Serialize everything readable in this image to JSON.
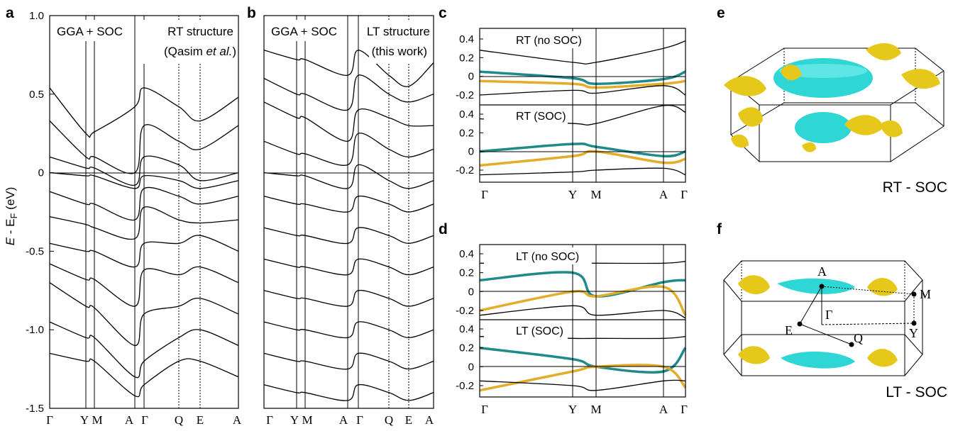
{
  "panels": {
    "a": {
      "label": "a",
      "ylabel_main": "E",
      "ylabel_rest": " - E",
      "ylabel_sub": "F",
      "ylabel_unit": " (eV)",
      "ylim": [
        -1.5,
        1.0
      ],
      "yticks": [
        "1.0",
        "0.5",
        "0",
        "-0.5",
        "-1.0",
        "-1.5"
      ],
      "kpoints": [
        "Γ",
        "Y",
        "M",
        "A",
        "Γ",
        "Q",
        "E",
        "A"
      ],
      "annot_left": "GGA + SOC",
      "annot_right_1": "RT structure",
      "annot_right_2a": "(Qasim ",
      "annot_right_2b": "et al.",
      "annot_right_2c": ")"
    },
    "b": {
      "label": "b",
      "kpoints": [
        "Γ",
        "Y",
        "M",
        "A",
        "Γ",
        "Q",
        "E",
        "A"
      ],
      "annot_left": "GGA + SOC",
      "annot_right_1": "LT structure",
      "annot_right_2": "(this work)"
    },
    "c": {
      "label": "c",
      "top_title": "RT (no SOC)",
      "bottom_title": "RT (SOC)",
      "top_yticks": [
        "0.4",
        "0.2",
        "0",
        "-0.2"
      ],
      "bottom_yticks": [
        "0.4",
        "0.2",
        "0",
        "-0.2"
      ],
      "kpoints": [
        "Γ",
        "Y",
        "M",
        "A",
        "Γ"
      ]
    },
    "d": {
      "label": "d",
      "top_title": "LT (no SOC)",
      "bottom_title": "LT (SOC)",
      "top_yticks": [
        "0.4",
        "0.2",
        "0",
        "-0.2"
      ],
      "bottom_yticks": [
        "0.4",
        "0.2",
        "0",
        "-0.2"
      ],
      "kpoints": [
        "Γ",
        "Y",
        "M",
        "A",
        "Γ"
      ]
    },
    "e": {
      "label": "e",
      "caption": "RT - SOC"
    },
    "f": {
      "label": "f",
      "caption": "LT - SOC",
      "points": [
        "A",
        "M",
        "Γ",
        "E",
        "Y",
        "Q"
      ]
    }
  },
  "colors": {
    "teal": "#1f8a8a",
    "gold": "#e3ad2a",
    "fs_gold": "#e6c81a",
    "fs_cyan": "#2fd6d6"
  },
  "chart_data": [
    {
      "type": "line",
      "title": "",
      "xlabel": "",
      "ylabel": "E - EF (eV)",
      "ylim": [
        -1.5,
        1.0
      ],
      "categories": [
        "Γ",
        "Y",
        "M",
        "A",
        "Γ",
        "Q",
        "E",
        "A"
      ],
      "series": [
        {
          "values": [
            0.54,
            0.25,
            0.26,
            0.42,
            0.54,
            0.42,
            0.33,
            0.48
          ]
        },
        {
          "values": [
            0.33,
            0.1,
            0.1,
            0.0,
            0.3,
            0.2,
            0.15,
            0.3
          ]
        },
        {
          "values": [
            0.1,
            0.03,
            0.03,
            -0.08,
            0.1,
            0.05,
            -0.05,
            0.0
          ]
        },
        {
          "values": [
            0.0,
            -0.02,
            -0.02,
            -0.1,
            -0.02,
            -0.05,
            -0.1,
            -0.05
          ]
        },
        {
          "values": [
            -0.12,
            -0.2,
            -0.2,
            -0.3,
            -0.1,
            -0.15,
            -0.2,
            -0.15
          ]
        },
        {
          "values": [
            -0.28,
            -0.33,
            -0.35,
            -0.42,
            -0.22,
            -0.3,
            -0.32,
            -0.3
          ]
        },
        {
          "values": [
            -0.45,
            -0.5,
            -0.5,
            -0.6,
            -0.45,
            -0.45,
            -0.4,
            -0.5
          ]
        },
        {
          "values": [
            -0.58,
            -0.68,
            -0.68,
            -0.85,
            -0.62,
            -0.65,
            -0.6,
            -0.7
          ]
        },
        {
          "values": [
            -0.7,
            -0.85,
            -0.86,
            -1.1,
            -0.9,
            -0.85,
            -0.8,
            -0.9
          ]
        },
        {
          "values": [
            -0.95,
            -1.05,
            -1.05,
            -1.3,
            -1.2,
            -1.05,
            -1.0,
            -1.1
          ]
        },
        {
          "values": [
            -1.15,
            -1.2,
            -1.2,
            -1.42,
            -1.35,
            -1.2,
            -1.2,
            -1.3
          ]
        }
      ]
    },
    {
      "type": "line",
      "title": "",
      "ylim": [
        -1.5,
        1.0
      ],
      "categories": [
        "Γ",
        "Y",
        "M",
        "A",
        "Γ",
        "Q",
        "E",
        "A"
      ],
      "series": [
        {
          "values": [
            0.78,
            0.72,
            0.72,
            0.62,
            0.78,
            0.62,
            0.55,
            0.7
          ]
        },
        {
          "values": [
            0.6,
            0.5,
            0.5,
            0.4,
            0.62,
            0.5,
            0.45,
            0.5
          ]
        },
        {
          "values": [
            0.45,
            0.35,
            0.35,
            0.2,
            0.4,
            0.35,
            0.3,
            0.3
          ]
        },
        {
          "values": [
            0.2,
            0.12,
            0.12,
            0.05,
            0.25,
            0.15,
            0.1,
            0.15
          ]
        },
        {
          "values": [
            0.0,
            -0.02,
            -0.02,
            -0.1,
            0.05,
            -0.05,
            -0.1,
            -0.05
          ]
        },
        {
          "values": [
            -0.15,
            -0.2,
            -0.2,
            -0.25,
            -0.15,
            -0.2,
            -0.25,
            -0.2
          ]
        },
        {
          "values": [
            -0.35,
            -0.4,
            -0.4,
            -0.45,
            -0.35,
            -0.4,
            -0.45,
            -0.4
          ]
        },
        {
          "values": [
            -0.55,
            -0.6,
            -0.6,
            -0.65,
            -0.55,
            -0.6,
            -0.65,
            -0.6
          ]
        },
        {
          "values": [
            -0.75,
            -0.8,
            -0.8,
            -0.85,
            -0.75,
            -0.8,
            -0.85,
            -0.8
          ]
        },
        {
          "values": [
            -0.95,
            -1.0,
            -1.0,
            -1.05,
            -0.95,
            -1.0,
            -1.05,
            -1.0
          ]
        },
        {
          "values": [
            -1.15,
            -1.2,
            -1.2,
            -1.25,
            -1.15,
            -1.2,
            -1.25,
            -1.2
          ]
        },
        {
          "values": [
            -1.35,
            -1.4,
            -1.4,
            -1.45,
            -1.35,
            -1.4,
            -1.45,
            -1.4
          ]
        }
      ]
    },
    {
      "type": "line",
      "title": "RT (no SOC)",
      "ylim": [
        -0.3,
        0.5
      ],
      "categories": [
        "Γ",
        "Y",
        "M",
        "A",
        "Γ"
      ],
      "series": [
        {
          "color": "#1f8a8a",
          "values": [
            0.05,
            -0.02,
            -0.08,
            -0.03,
            0.05
          ]
        },
        {
          "color": "#e3ad2a",
          "values": [
            -0.05,
            -0.08,
            -0.12,
            -0.08,
            -0.05
          ]
        },
        {
          "values": [
            0.28,
            0.15,
            0.15,
            0.3,
            0.38
          ]
        },
        {
          "values": [
            -0.2,
            -0.15,
            -0.18,
            -0.1,
            -0.2
          ]
        }
      ]
    },
    {
      "type": "line",
      "title": "RT (SOC)",
      "ylim": [
        -0.3,
        0.5
      ],
      "categories": [
        "Γ",
        "Y",
        "M",
        "A",
        "Γ"
      ],
      "series": [
        {
          "color": "#1f8a8a",
          "values": [
            0.0,
            0.08,
            0.05,
            -0.05,
            0.0
          ]
        },
        {
          "color": "#e3ad2a",
          "values": [
            -0.15,
            -0.05,
            0.0,
            -0.12,
            -0.08
          ]
        },
        {
          "values": [
            0.35,
            0.3,
            0.3,
            0.5,
            0.42
          ]
        },
        {
          "values": [
            -0.25,
            -0.22,
            -0.2,
            -0.18,
            -0.25
          ]
        }
      ]
    },
    {
      "type": "line",
      "title": "LT (no SOC)",
      "ylim": [
        -0.3,
        0.5
      ],
      "categories": [
        "Γ",
        "Y",
        "M",
        "A",
        "Γ"
      ],
      "series": [
        {
          "color": "#1f8a8a",
          "values": [
            0.12,
            0.2,
            -0.05,
            0.1,
            0.12
          ]
        },
        {
          "color": "#e3ad2a",
          "values": [
            -0.2,
            0.0,
            -0.05,
            0.05,
            -0.25
          ]
        },
        {
          "values": [
            0.3,
            0.3,
            0.3,
            0.3,
            0.32
          ]
        },
        {
          "values": [
            -0.25,
            -0.15,
            -0.25,
            -0.2,
            -0.28
          ]
        }
      ]
    },
    {
      "type": "line",
      "title": "LT (SOC)",
      "ylim": [
        -0.3,
        0.5
      ],
      "categories": [
        "Γ",
        "Y",
        "M",
        "A",
        "Γ"
      ],
      "series": [
        {
          "color": "#1f8a8a",
          "values": [
            0.2,
            0.08,
            0.0,
            -0.05,
            0.2
          ]
        },
        {
          "color": "#e3ad2a",
          "values": [
            -0.25,
            -0.05,
            0.0,
            0.0,
            -0.22
          ]
        },
        {
          "values": [
            0.32,
            0.3,
            0.3,
            0.3,
            0.32
          ]
        },
        {
          "values": [
            -0.15,
            -0.2,
            -0.25,
            -0.15,
            -0.15
          ]
        }
      ]
    }
  ]
}
